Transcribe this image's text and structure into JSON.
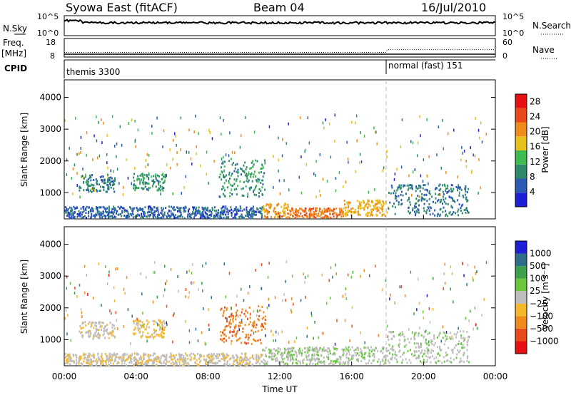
{
  "header": {
    "title_left": "Syowa East (fitACF)",
    "title_center": "Beam 04",
    "title_right": "16/Jul/2010"
  },
  "status_panels": {
    "nsky_label": "N.Sky",
    "nsky_ticks": [
      "10^5",
      "10^0"
    ],
    "nsearch_label": "N.Search",
    "nsearch_ticks": [
      "10^5",
      "10^0"
    ],
    "freq_label": "Freq.",
    "freq_unit": "[MHz]",
    "freq_ticks": [
      "18",
      "8"
    ],
    "nave_label": "Nave",
    "nave_ticks": [
      "60",
      "0"
    ],
    "cpid_label": "CPID",
    "cpid_segments": [
      {
        "label": "themis 3300",
        "start_hour": 0
      },
      {
        "label": "normal (fast) 151",
        "start_hour": 18
      }
    ],
    "freq_series": {
      "before_hour": 18,
      "before_value": 10.5,
      "after_value": 12.0
    },
    "nave_series": {
      "before_value": 2,
      "after_value": 2
    }
  },
  "chart_data": [
    {
      "type": "heatmap",
      "name": "power",
      "ylabel": "Slant Range [km]",
      "xlabel": "",
      "xlim": [
        0,
        24
      ],
      "ylim": [
        180,
        4550
      ],
      "yticks": [
        "1000",
        "2000",
        "3000",
        "4000"
      ],
      "colorbar_label": "Power [dB]",
      "colorbar_ticks": [
        "4",
        "8",
        "12",
        "16",
        "20",
        "24",
        "28"
      ],
      "colorbar_range": [
        0,
        30
      ],
      "colors": [
        "#1e1ed8",
        "#2d5ab4",
        "#2e8a6b",
        "#3dbd50",
        "#e6c21a",
        "#f08a1a",
        "#e84a1a",
        "#e81010"
      ],
      "regions": [
        {
          "t0": 0.8,
          "t1": 2.8,
          "r0": 1050,
          "r1": 1600,
          "level": 8
        },
        {
          "t0": 3.8,
          "t1": 5.6,
          "r0": 1100,
          "r1": 1650,
          "level": 10
        },
        {
          "t0": 8.6,
          "t1": 11.2,
          "r0": 900,
          "r1": 2100,
          "level": 10
        },
        {
          "t0": 11.0,
          "t1": 12.5,
          "r0": 250,
          "r1": 700,
          "level": 20
        },
        {
          "t0": 12.5,
          "t1": 15.5,
          "r0": 250,
          "r1": 550,
          "level": 22
        },
        {
          "t0": 15.5,
          "t1": 18.0,
          "r0": 300,
          "r1": 800,
          "level": 18
        },
        {
          "t0": 18.0,
          "t1": 22.5,
          "r0": 300,
          "r1": 1300,
          "level": 8
        },
        {
          "t0": 0.0,
          "t1": 11.0,
          "r0": 230,
          "r1": 600,
          "level": 6
        }
      ]
    },
    {
      "type": "heatmap",
      "name": "velocity",
      "ylabel": "Slant Range [km]",
      "xlabel": "Time UT",
      "xlim": [
        0,
        24
      ],
      "ylim": [
        180,
        4550
      ],
      "xticks": [
        "00:00",
        "04:00",
        "08:00",
        "12:00",
        "16:00",
        "20:00",
        "00:00"
      ],
      "yticks": [
        "1000",
        "2000",
        "3000",
        "4000"
      ],
      "colorbar_label": "Velocity [m s⁻¹]",
      "colorbar_ticks": [
        "1000",
        "500",
        "100",
        "25",
        "−25",
        "−100",
        "−500",
        "−1000"
      ],
      "colorbar_range": [
        -1200,
        1200
      ],
      "colors": [
        "#e81010",
        "#e84a1a",
        "#f08a1a",
        "#f5b82a",
        "#bdbdbd",
        "#68c83a",
        "#3aa04a",
        "#2e6e8a",
        "#1e1ed8"
      ],
      "regions": [
        {
          "t0": 0.8,
          "t1": 2.8,
          "r0": 1050,
          "r1": 1600,
          "level": -60
        },
        {
          "t0": 3.8,
          "t1": 5.6,
          "r0": 1100,
          "r1": 1650,
          "level": -200
        },
        {
          "t0": 8.6,
          "t1": 11.2,
          "r0": 900,
          "r1": 2100,
          "level": -600
        },
        {
          "t0": 11.0,
          "t1": 18.0,
          "r0": 250,
          "r1": 800,
          "level": 80
        },
        {
          "t0": 18.0,
          "t1": 22.5,
          "r0": 300,
          "r1": 1300,
          "level": 60
        },
        {
          "t0": 0.0,
          "t1": 11.0,
          "r0": 230,
          "r1": 600,
          "level": -80
        }
      ]
    }
  ]
}
